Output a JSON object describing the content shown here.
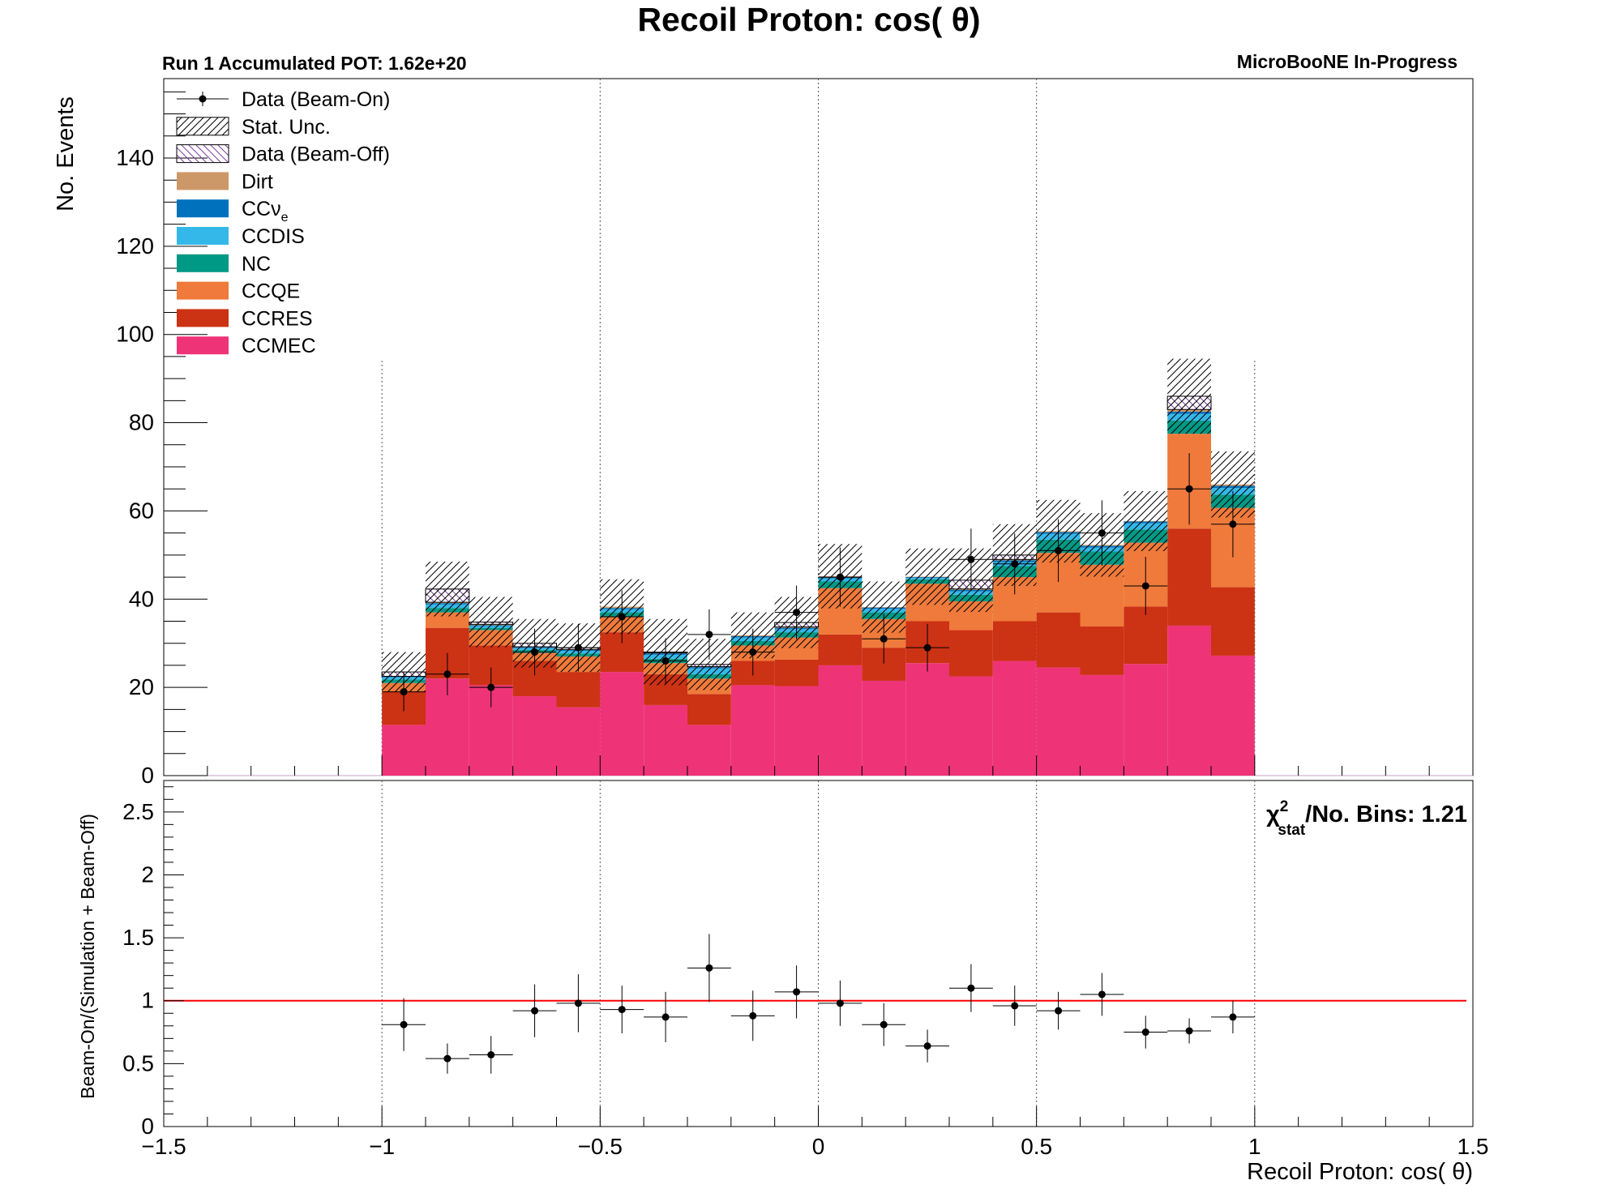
{
  "colors": {
    "beam_off_hatch": "#7b3fa0",
    "Dirt": "#cd9867",
    "CCnue": "#0072bd",
    "CCDIS": "#34b8ea",
    "NC": "#009985",
    "CCQE": "#ef7a3b",
    "CCRES": "#cc3214",
    "CCMEC": "#ee3477",
    "ratio_line": "#ff0000",
    "data": "#000000"
  },
  "chart_data": [
    {
      "type": "bar",
      "stacked": true,
      "title": "Recoil Proton: cos( θ)",
      "subtitle_left": "Run 1 Accumulated POT: 1.62e+20",
      "subtitle_right": "MicroBooNE In-Progress",
      "ylabel": "No. Events",
      "xlim": [
        -1.5,
        1.5
      ],
      "ylim": [
        0,
        158
      ],
      "yticks": [
        0,
        20,
        40,
        60,
        80,
        100,
        120,
        140
      ],
      "bin_edges": [
        -1.0,
        -0.9,
        -0.8,
        -0.7,
        -0.6,
        -0.5,
        -0.4,
        -0.3,
        -0.2,
        -0.1,
        0.0,
        0.1,
        0.2,
        0.3,
        0.4,
        0.5,
        0.6,
        0.7,
        0.8,
        0.9,
        1.0
      ],
      "legend": [
        {
          "label": "Data (Beam-On)",
          "kind": "data"
        },
        {
          "label": "Stat. Unc.",
          "kind": "hatch"
        },
        {
          "label": "Data (Beam-Off)",
          "kind": "hatch-beamoff"
        },
        {
          "label": "Dirt",
          "kind": "fill",
          "color_key": "Dirt"
        },
        {
          "label": "CCν",
          "sub": "e",
          "kind": "fill",
          "color_key": "CCnue"
        },
        {
          "label": "CCDIS",
          "kind": "fill",
          "color_key": "CCDIS"
        },
        {
          "label": "NC",
          "kind": "fill",
          "color_key": "NC"
        },
        {
          "label": "CCQE",
          "kind": "fill",
          "color_key": "CCQE"
        },
        {
          "label": "CCRES",
          "kind": "fill",
          "color_key": "CCRES"
        },
        {
          "label": "CCMEC",
          "kind": "fill",
          "color_key": "CCMEC"
        }
      ],
      "series": [
        {
          "name": "CCMEC",
          "color_key": "CCMEC",
          "values": [
            11.5,
            22.0,
            20.5,
            18.0,
            15.5,
            23.5,
            16.0,
            11.5,
            20.5,
            20.3,
            25.0,
            21.5,
            25.5,
            22.5,
            26.0,
            24.5,
            22.8,
            25.3,
            34.0,
            27.2
          ]
        },
        {
          "name": "CCRES",
          "color_key": "CCRES",
          "values": [
            7.5,
            11.5,
            9.0,
            8.0,
            8.0,
            9.0,
            7.0,
            7.0,
            5.5,
            6.0,
            7.0,
            7.5,
            9.5,
            10.5,
            9.0,
            12.5,
            11.0,
            13.0,
            22.0,
            15.5
          ]
        },
        {
          "name": "CCQE",
          "color_key": "CCQE",
          "values": [
            2.0,
            3.5,
            3.5,
            1.8,
            3.5,
            3.5,
            2.5,
            3.5,
            3.5,
            5.0,
            10.5,
            6.5,
            8.5,
            6.5,
            10.0,
            13.5,
            14.0,
            14.5,
            21.5,
            18.0
          ]
        },
        {
          "name": "NC",
          "color_key": "NC",
          "values": [
            0.8,
            1.0,
            0.5,
            0.7,
            0.7,
            1.0,
            1.0,
            1.0,
            1.0,
            1.2,
            1.5,
            1.5,
            1.0,
            1.5,
            2.5,
            3.0,
            3.0,
            3.0,
            3.0,
            3.0
          ]
        },
        {
          "name": "CCDIS",
          "color_key": "CCDIS",
          "values": [
            0.5,
            0.8,
            0.4,
            0.4,
            0.6,
            0.7,
            0.9,
            1.3,
            0.8,
            0.7,
            0.7,
            0.8,
            0.3,
            0.8,
            0.9,
            1.3,
            0.9,
            1.4,
            1.5,
            1.5
          ]
        },
        {
          "name": "CCν",
          "color_key": "CCnue",
          "values": [
            0.2,
            0.3,
            0.2,
            0.2,
            0.2,
            0.3,
            0.3,
            0.3,
            0.3,
            0.3,
            0.3,
            0.3,
            0.2,
            0.3,
            0.4,
            0.4,
            0.4,
            0.4,
            0.5,
            0.5
          ]
        },
        {
          "name": "Dirt",
          "color_key": "Dirt",
          "values": [
            0.0,
            0.2,
            0.2,
            0.1,
            0.1,
            0.3,
            0.1,
            0.1,
            0.2,
            0.2,
            0.2,
            0.1,
            0.1,
            0.2,
            0.2,
            0.2,
            0.2,
            0.1,
            0.5,
            0.3
          ]
        },
        {
          "name": "Data (Beam-Off)",
          "color_key": "beam_off_hatch",
          "values": [
            1.0,
            3.0,
            0.5,
            0.8,
            0.4,
            0.0,
            0.2,
            0.5,
            0.0,
            1.0,
            0.0,
            0.0,
            0.0,
            2.0,
            1.0,
            0.0,
            0.0,
            0.0,
            3.0,
            0.0
          ]
        }
      ],
      "stat_unc_top": [
        28.0,
        48.5,
        40.5,
        35.5,
        34.5,
        44.5,
        35.5,
        31.0,
        37.0,
        40.5,
        52.5,
        44.0,
        51.5,
        51.5,
        57.0,
        62.5,
        59.5,
        64.5,
        94.5,
        73.5
      ],
      "data": {
        "x": [
          -0.95,
          -0.85,
          -0.75,
          -0.65,
          -0.55,
          -0.45,
          -0.35,
          -0.25,
          -0.15,
          -0.05,
          0.05,
          0.15,
          0.25,
          0.35,
          0.45,
          0.55,
          0.65,
          0.75,
          0.85,
          0.95
        ],
        "y": [
          19,
          23,
          20,
          28,
          29,
          36,
          26,
          32,
          28,
          37,
          45,
          31,
          29,
          49,
          48,
          51,
          55,
          43,
          65,
          57
        ],
        "yerr": [
          4.4,
          4.8,
          4.5,
          5.3,
          5.4,
          6.0,
          5.1,
          5.7,
          5.3,
          6.1,
          6.7,
          5.6,
          5.4,
          7.0,
          6.9,
          7.1,
          7.4,
          6.6,
          8.1,
          7.5
        ]
      }
    },
    {
      "type": "scatter",
      "ylabel": "Beam-On/(Simulation + Beam-Off)",
      "xlabel": "Recoil Proton: cos( θ)",
      "annotation": {
        "chi": "χ",
        "sup": "2",
        "sub": "stat",
        "rest": "/No. Bins: 1.21"
      },
      "xlim": [
        -1.5,
        1.5
      ],
      "ylim": [
        0,
        2.75
      ],
      "yticks": [
        0,
        0.5,
        1,
        1.5,
        2,
        2.5
      ],
      "ytick_labels": [
        "0",
        "0.5",
        "1",
        "1.5",
        "2",
        "2.5"
      ],
      "xticks": [
        -1.5,
        -1,
        -0.5,
        0,
        0.5,
        1,
        1.5
      ],
      "xtick_labels": [
        "−1.5",
        "−1",
        "−0.5",
        "0",
        "0.5",
        "1",
        "1.5"
      ],
      "reference_line": 1,
      "x": [
        -0.95,
        -0.85,
        -0.75,
        -0.65,
        -0.55,
        -0.45,
        -0.35,
        -0.25,
        -0.15,
        -0.05,
        0.05,
        0.15,
        0.25,
        0.35,
        0.45,
        0.55,
        0.65,
        0.75,
        0.85,
        0.95
      ],
      "y": [
        0.81,
        0.54,
        0.57,
        0.92,
        0.98,
        0.93,
        0.87,
        1.26,
        0.88,
        1.07,
        0.98,
        0.81,
        0.64,
        1.1,
        0.96,
        0.92,
        1.05,
        0.75,
        0.76,
        0.87
      ],
      "yerr": [
        0.21,
        0.12,
        0.15,
        0.21,
        0.23,
        0.19,
        0.2,
        0.27,
        0.2,
        0.21,
        0.18,
        0.17,
        0.13,
        0.19,
        0.16,
        0.15,
        0.17,
        0.13,
        0.1,
        0.13
      ]
    }
  ]
}
